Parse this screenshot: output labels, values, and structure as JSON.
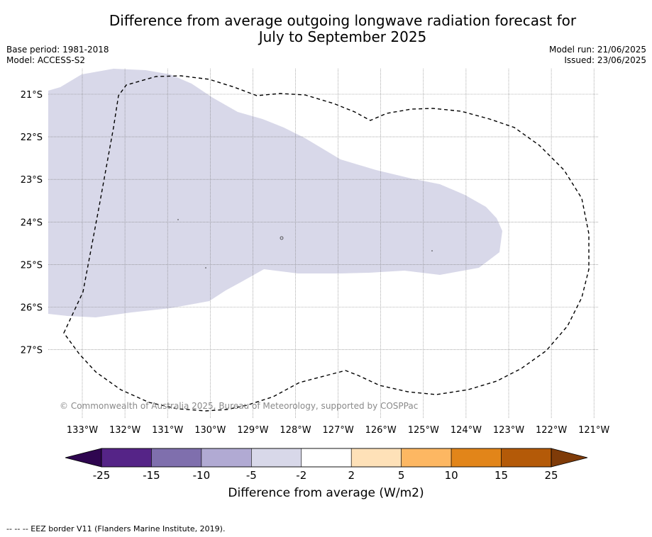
{
  "title_line1": "Difference from average outgoing longwave radiation forecast for",
  "title_line2": "July to September 2025",
  "meta_left": [
    "Base period: 1981-2018",
    "Model: ACCESS-S2"
  ],
  "meta_right": [
    "Model run: 21/06/2025",
    "Issued: 23/06/2025"
  ],
  "map": {
    "lat_labels": [
      "21°S",
      "22°S",
      "23°S",
      "24°S",
      "25°S",
      "26°S",
      "27°S"
    ],
    "lon_labels": [
      "133°W",
      "132°W",
      "131°W",
      "130°W",
      "129°W",
      "128°W",
      "127°W",
      "126°W",
      "125°W",
      "124°W",
      "123°W",
      "122°W",
      "121°W"
    ],
    "copyright": "© Commonwealth of Australia 2025, Bureau of Meteorology, supported by COSPPac",
    "anomaly_fill_color": "#d8d8e9",
    "anomaly_category": "-5 to -2"
  },
  "colorbar": {
    "ticks": [
      "-25",
      "-15",
      "-10",
      "-5",
      "-2",
      "2",
      "5",
      "10",
      "15",
      "25"
    ],
    "colors": [
      "#552487",
      "#7f6fad",
      "#b1aad3",
      "#d8d8e9",
      "#ffffff",
      "#fee1b8",
      "#fdb762",
      "#e28519",
      "#b45a08"
    ],
    "low_extend_color": "#2f0650",
    "high_extend_color": "#7f3b08",
    "label": "Difference from average (W/m2)"
  },
  "footer": "-- -- -- EEZ border V11 (Flanders Marine Institute, 2019)."
}
